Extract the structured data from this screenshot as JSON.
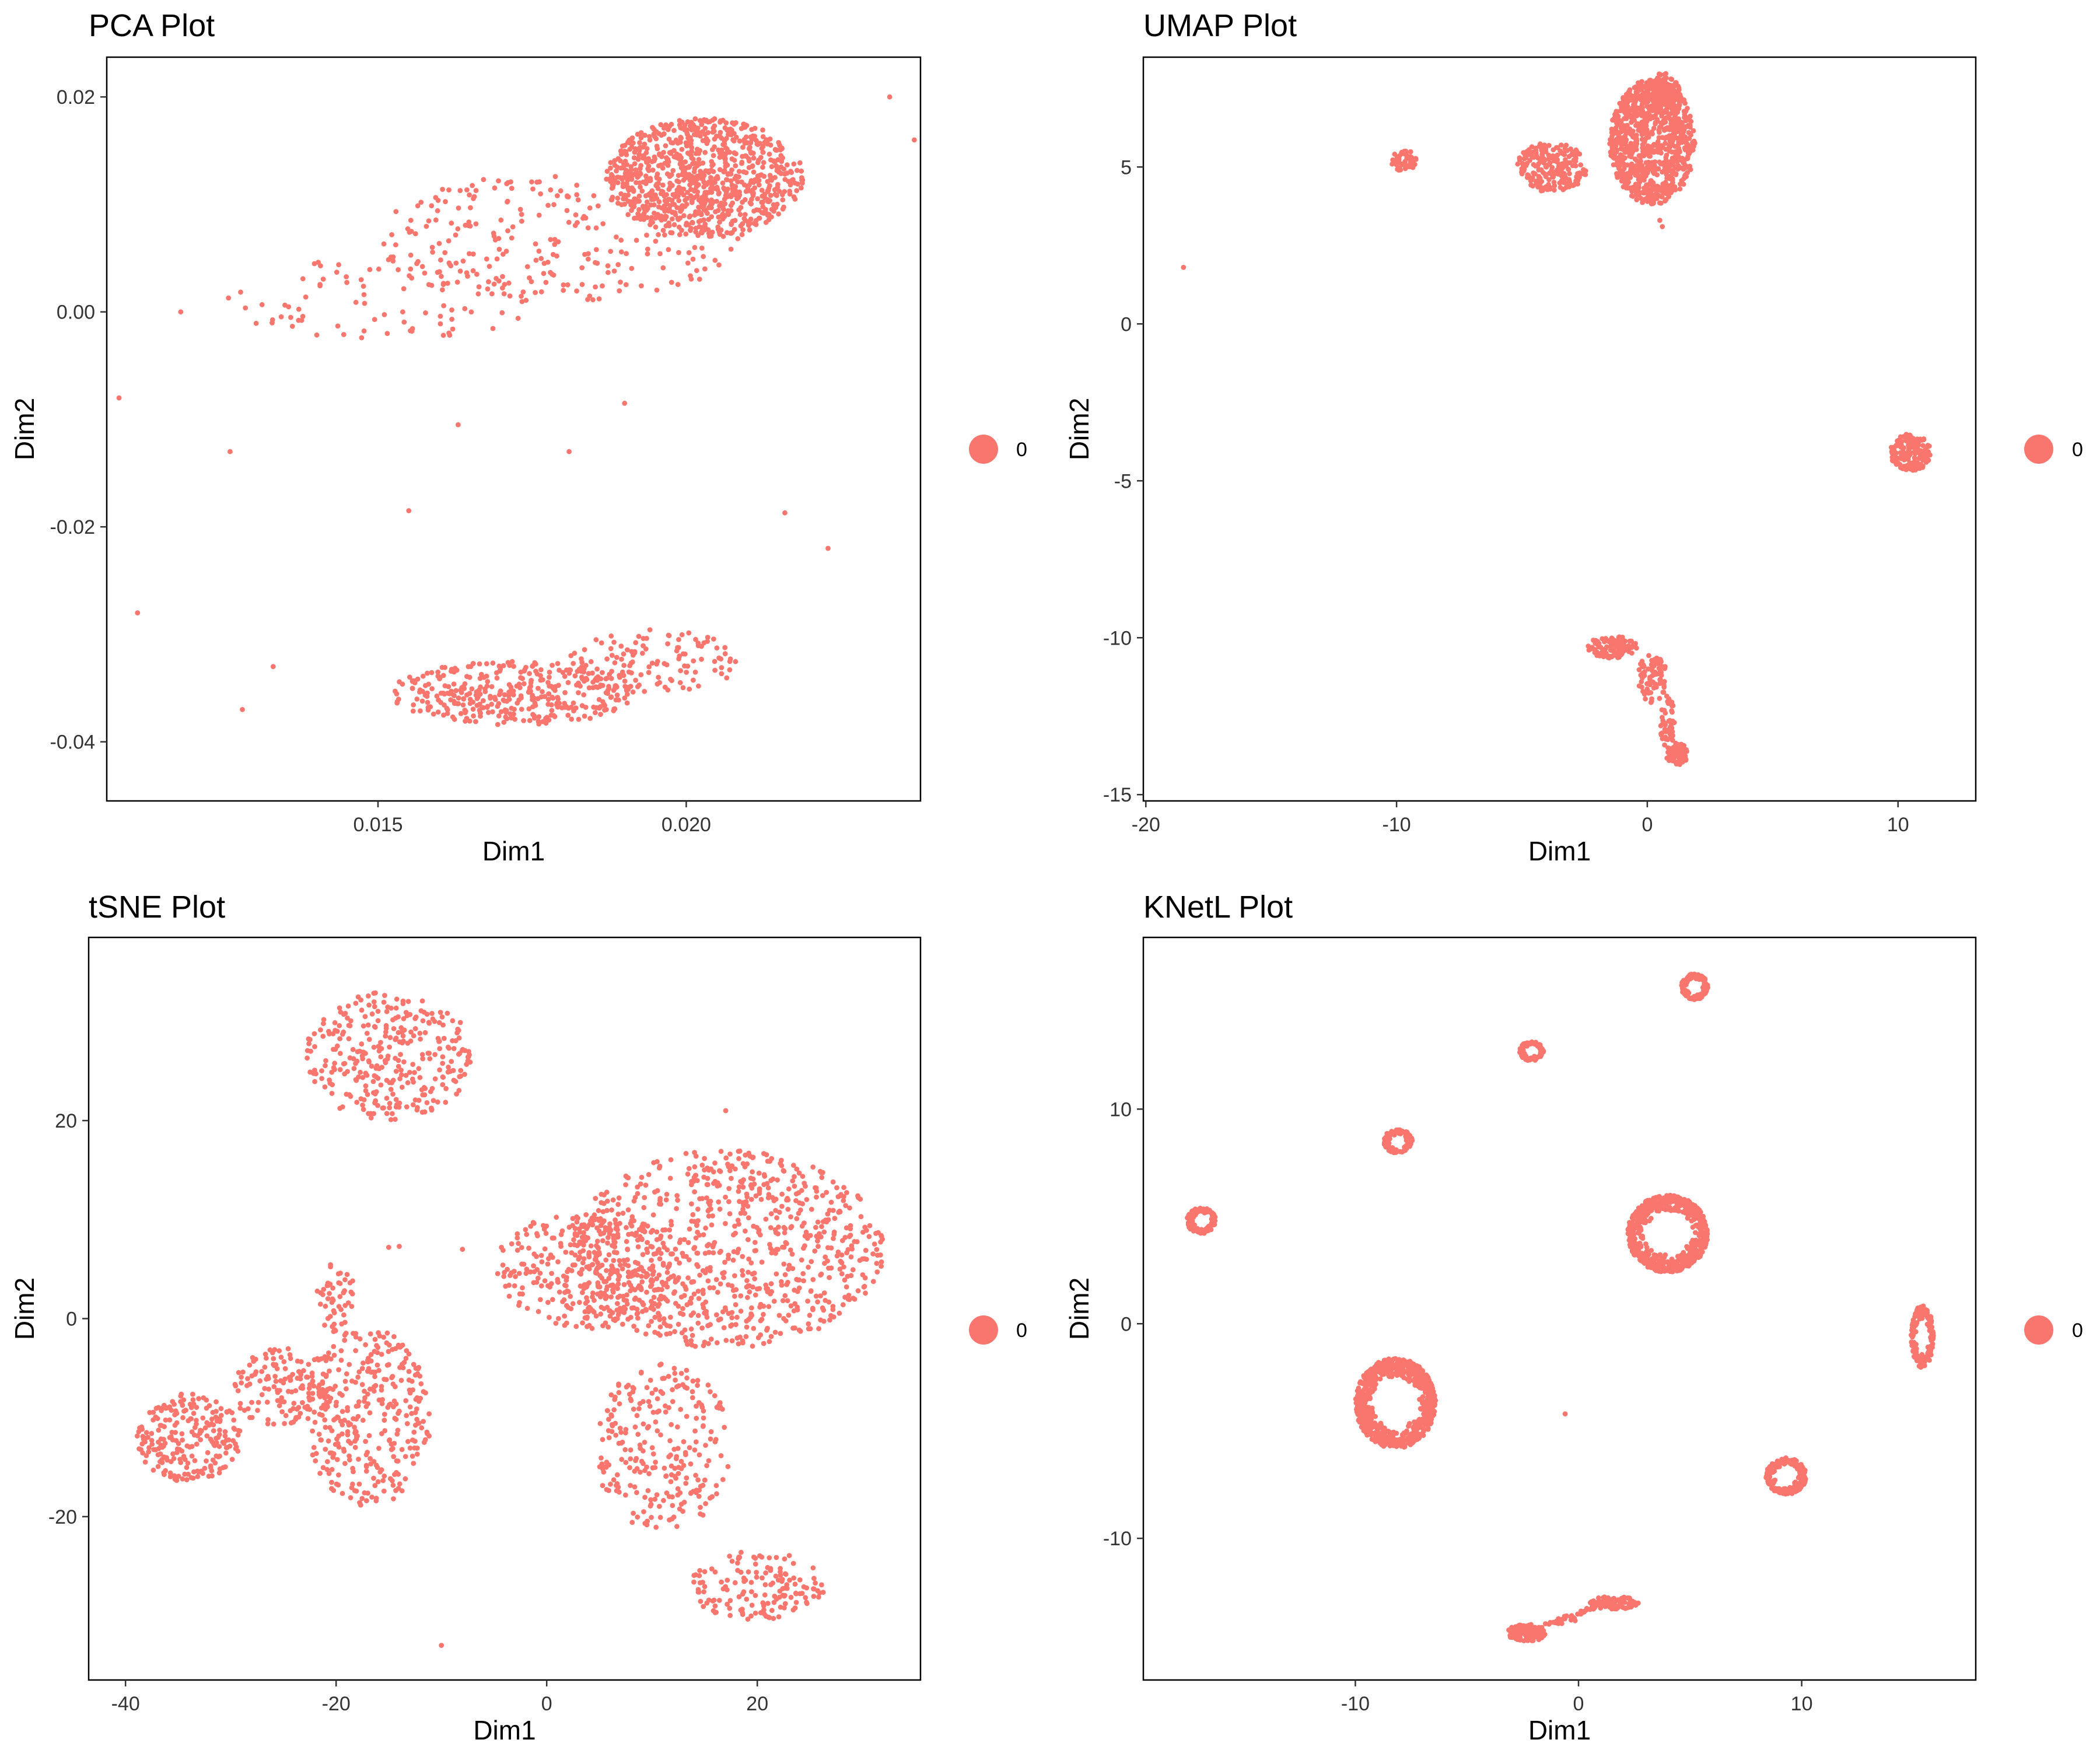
{
  "figure": {
    "point_color": "#F8766D",
    "background": "#FFFFFF"
  },
  "chart_data": [
    {
      "type": "scatter",
      "title": "PCA Plot",
      "xlabel": "Dim1",
      "ylabel": "Dim2",
      "xlim": [
        0.0106,
        0.0238
      ],
      "ylim": [
        -0.0455,
        0.0237
      ],
      "xticks": [
        0.015,
        0.02
      ],
      "xtick_labels": [
        "0.015",
        "0.020"
      ],
      "yticks": [
        -0.04,
        -0.02,
        0.0,
        0.02
      ],
      "ytick_labels": [
        "-0.04",
        "-0.02",
        "0.00",
        "0.02"
      ],
      "legend": {
        "label": "0",
        "position": "right"
      },
      "grid": false,
      "clusters": [
        {
          "shape": "ellipse",
          "cx": 0.0203,
          "cy": 0.0125,
          "rx": 0.0016,
          "ry": 0.0055,
          "n": 900
        },
        {
          "shape": "ellipse",
          "cx": 0.018,
          "cy": 0.007,
          "rx": 0.003,
          "ry": 0.006,
          "n": 260
        },
        {
          "shape": "ellipse",
          "cx": 0.015,
          "cy": 0.001,
          "rx": 0.0025,
          "ry": 0.004,
          "n": 90
        },
        {
          "shape": "ellipse",
          "cx": 0.0172,
          "cy": -0.0355,
          "rx": 0.002,
          "ry": 0.003,
          "n": 380
        },
        {
          "shape": "ellipse",
          "cx": 0.0195,
          "cy": -0.0325,
          "rx": 0.0014,
          "ry": 0.003,
          "n": 120
        }
      ],
      "points": [
        [
          0.0108,
          -0.008
        ],
        [
          0.0111,
          -0.028
        ],
        [
          0.0126,
          -0.013
        ],
        [
          0.0133,
          -0.033
        ],
        [
          0.0128,
          -0.037
        ],
        [
          0.0216,
          -0.0187
        ],
        [
          0.0223,
          -0.022
        ],
        [
          0.0181,
          -0.013
        ],
        [
          0.0163,
          -0.0105
        ],
        [
          0.019,
          -0.0085
        ],
        [
          0.0118,
          0.0
        ],
        [
          0.0233,
          0.02
        ],
        [
          0.0155,
          -0.0185
        ],
        [
          0.0237,
          0.016
        ]
      ]
    },
    {
      "type": "scatter",
      "title": "UMAP Plot",
      "xlabel": "Dim1",
      "ylabel": "Dim2",
      "xlim": [
        -20.1,
        13.1
      ],
      "ylim": [
        -15.2,
        8.5
      ],
      "xticks": [
        -20,
        -10,
        0,
        10
      ],
      "xtick_labels": [
        "-20",
        "-10",
        "0",
        "10"
      ],
      "yticks": [
        -15,
        -10,
        -5,
        0,
        5
      ],
      "ytick_labels": [
        "-15",
        "-10",
        "-5",
        "0",
        "5"
      ],
      "legend": {
        "label": "0",
        "position": "right"
      },
      "grid": false,
      "clusters": [
        {
          "shape": "ellipse",
          "cx": 0.2,
          "cy": 5.8,
          "rx": 1.7,
          "ry": 2.0,
          "n": 900
        },
        {
          "shape": "ellipse",
          "cx": 0.6,
          "cy": 7.4,
          "rx": 0.7,
          "ry": 0.6,
          "n": 120
        },
        {
          "shape": "ellipse",
          "cx": -3.8,
          "cy": 5.0,
          "rx": 1.4,
          "ry": 0.8,
          "n": 220
        },
        {
          "shape": "ellipse",
          "cx": -9.7,
          "cy": 5.2,
          "rx": 0.5,
          "ry": 0.35,
          "n": 60
        },
        {
          "shape": "ellipse",
          "cx": 10.5,
          "cy": -4.1,
          "rx": 0.8,
          "ry": 0.6,
          "n": 160
        },
        {
          "shape": "ellipse",
          "cx": -1.4,
          "cy": -10.3,
          "rx": 1.0,
          "ry": 0.35,
          "n": 110
        },
        {
          "shape": "ellipse",
          "cx": 0.2,
          "cy": -11.3,
          "rx": 0.6,
          "ry": 0.8,
          "n": 80
        },
        {
          "shape": "ellipse",
          "cx": 0.8,
          "cy": -12.7,
          "rx": 0.3,
          "ry": 0.9,
          "n": 50
        },
        {
          "shape": "ellipse",
          "cx": 1.2,
          "cy": -13.7,
          "rx": 0.45,
          "ry": 0.35,
          "n": 70
        }
      ],
      "points": [
        [
          -18.5,
          1.8
        ],
        [
          0.5,
          3.3
        ],
        [
          0.6,
          3.1
        ]
      ]
    },
    {
      "type": "scatter",
      "title": "tSNE Plot",
      "xlabel": "Dim1",
      "ylabel": "Dim2",
      "xlim": [
        -43.5,
        35.5
      ],
      "ylim": [
        -36.5,
        38.5
      ],
      "xticks": [
        -40,
        -20,
        0,
        20
      ],
      "xtick_labels": [
        "-40",
        "-20",
        "0",
        "20"
      ],
      "yticks": [
        -20,
        0,
        20
      ],
      "ytick_labels": [
        "-20",
        "0",
        "20"
      ],
      "legend": {
        "label": "0",
        "position": "right"
      },
      "grid": false,
      "clusters": [
        {
          "shape": "ellipse",
          "cx": -15,
          "cy": 26.5,
          "rx": 8,
          "ry": 6.5,
          "n": 320
        },
        {
          "shape": "ellipse",
          "cx": 17,
          "cy": 7,
          "rx": 15,
          "ry": 10,
          "n": 850
        },
        {
          "shape": "ellipse",
          "cx": 4,
          "cy": 5,
          "rx": 9,
          "ry": 6,
          "n": 330
        },
        {
          "shape": "ellipse",
          "cx": 11,
          "cy": -13,
          "rx": 6.5,
          "ry": 8.5,
          "n": 260
        },
        {
          "shape": "ellipse",
          "cx": 20,
          "cy": -27,
          "rx": 6.5,
          "ry": 3.5,
          "n": 150
        },
        {
          "shape": "ellipse",
          "cx": -34,
          "cy": -12,
          "rx": 5,
          "ry": 4.5,
          "n": 230
        },
        {
          "shape": "ellipse",
          "cx": -25,
          "cy": -7,
          "rx": 5,
          "ry": 4,
          "n": 140
        },
        {
          "shape": "ellipse",
          "cx": -17,
          "cy": -10,
          "rx": 6,
          "ry": 9,
          "n": 330
        },
        {
          "shape": "ellipse",
          "cx": -20,
          "cy": 2,
          "rx": 2,
          "ry": 4,
          "n": 50
        }
      ],
      "points": [
        [
          -10,
          -33
        ],
        [
          -15,
          7.2
        ],
        [
          -14,
          7.3
        ],
        [
          -8,
          7
        ],
        [
          17,
          21
        ]
      ]
    },
    {
      "type": "scatter",
      "title": "KNetL Plot",
      "xlabel": "Dim1",
      "ylabel": "Dim2",
      "xlim": [
        -19.5,
        17.8
      ],
      "ylim": [
        -16.6,
        18.0
      ],
      "xticks": [
        -10,
        0,
        10
      ],
      "xtick_labels": [
        "-10",
        "0",
        "10"
      ],
      "yticks": [
        -10,
        0,
        10
      ],
      "ytick_labels": [
        "-10",
        "0",
        "10"
      ],
      "legend": {
        "label": "0",
        "position": "right"
      },
      "grid": false,
      "clusters": [
        {
          "shape": "ring",
          "cx": 5.2,
          "cy": 15.7,
          "rx": 0.6,
          "ry": 0.6,
          "n": 120
        },
        {
          "shape": "ring",
          "cx": -2.1,
          "cy": 12.7,
          "rx": 0.55,
          "ry": 0.45,
          "n": 80
        },
        {
          "shape": "ring",
          "cx": -8.1,
          "cy": 8.5,
          "rx": 0.65,
          "ry": 0.55,
          "n": 110
        },
        {
          "shape": "ring",
          "cx": -16.9,
          "cy": 4.8,
          "rx": 0.65,
          "ry": 0.6,
          "n": 110
        },
        {
          "shape": "ring",
          "cx": 4.0,
          "cy": 4.2,
          "rx": 1.8,
          "ry": 1.8,
          "n": 600
        },
        {
          "shape": "ring",
          "cx": -8.2,
          "cy": -3.7,
          "rx": 1.8,
          "ry": 2.1,
          "n": 680
        },
        {
          "shape": "ring",
          "cx": 15.4,
          "cy": -0.6,
          "rx": 0.5,
          "ry": 1.45,
          "n": 160
        },
        {
          "shape": "ring",
          "cx": 9.3,
          "cy": -7.1,
          "rx": 0.9,
          "ry": 0.85,
          "n": 190
        },
        {
          "shape": "ellipse",
          "cx": -2.3,
          "cy": -14.4,
          "rx": 0.9,
          "ry": 0.4,
          "n": 110
        },
        {
          "shape": "ellipse",
          "cx": 1.6,
          "cy": -13.0,
          "rx": 1.1,
          "ry": 0.3,
          "n": 100
        },
        {
          "shape": "line",
          "x1": -1.2,
          "y1": -14.0,
          "x2": 0.8,
          "y2": -13.2,
          "n": 40
        }
      ],
      "points": [
        [
          -0.6,
          -4.2
        ]
      ]
    }
  ]
}
